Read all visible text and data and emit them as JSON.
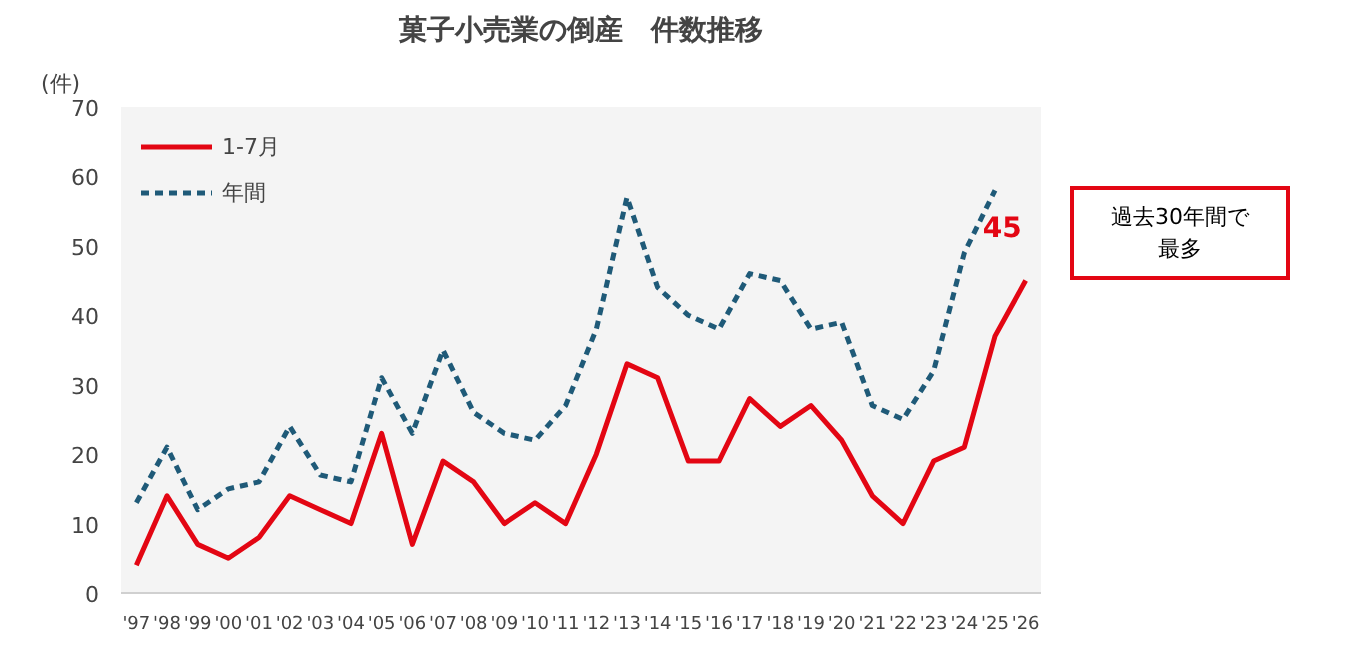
{
  "chart_data": {
    "type": "line",
    "title": "菓子小売業の倒産　件数推移",
    "ylabel": "(件)",
    "categories": [
      "'97",
      "'98",
      "'99",
      "'00",
      "'01",
      "'02",
      "'03",
      "'04",
      "'05",
      "'06",
      "'07",
      "'08",
      "'09",
      "'10",
      "'11",
      "'12",
      "'13",
      "'14",
      "'15",
      "'16",
      "'17",
      "'18",
      "'19",
      "'20",
      "'21",
      "'22",
      "'23",
      "'24",
      "'25",
      "'26"
    ],
    "series": [
      {
        "name": "1-7月",
        "color": "#e30613",
        "line_style": "solid",
        "values": [
          4,
          14,
          7,
          5,
          8,
          14,
          12,
          10,
          23,
          7,
          19,
          16,
          10,
          13,
          10,
          20,
          33,
          31,
          19,
          19,
          28,
          24,
          27,
          22,
          14,
          10,
          19,
          21,
          37,
          45
        ],
        "value_labels": [
          null,
          null,
          null,
          null,
          null,
          null,
          null,
          null,
          null,
          null,
          null,
          null,
          null,
          null,
          null,
          null,
          null,
          null,
          null,
          null,
          null,
          null,
          null,
          null,
          null,
          null,
          null,
          null,
          null,
          "45"
        ]
      },
      {
        "name": "年間",
        "color": "#1f5a78",
        "line_style": "dashed",
        "values": [
          13,
          21,
          12,
          15,
          16,
          24,
          17,
          16,
          31,
          23,
          35,
          26,
          23,
          22,
          27,
          38,
          57,
          44,
          40,
          38,
          46,
          45,
          38,
          39,
          27,
          25,
          32,
          49,
          58,
          null
        ]
      }
    ],
    "ylim": [
      0,
      70
    ],
    "yticks": [
      0,
      10,
      20,
      30,
      40,
      50,
      60,
      70
    ],
    "grid": false,
    "legend": "top left",
    "marker": "none",
    "annotations": [
      "過去30年間で最多"
    ]
  }
}
